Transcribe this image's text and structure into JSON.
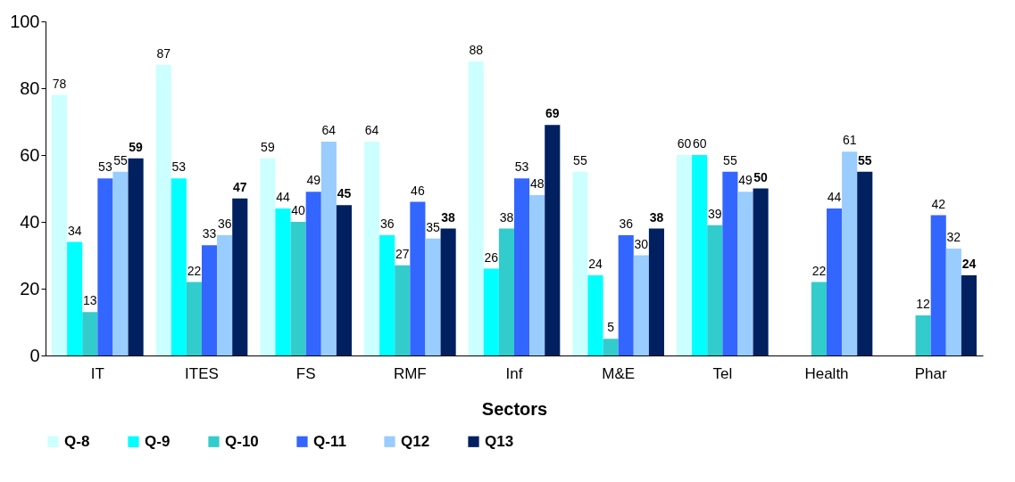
{
  "chart_data": {
    "type": "bar",
    "xlabel": "Sectors",
    "categories": [
      "IT",
      "ITES",
      "FS",
      "RMF",
      "Inf",
      "M&E",
      "Tel",
      "Health",
      "Phar"
    ],
    "series": [
      {
        "name": "Q-8",
        "color": "#ccffff",
        "values": [
          78,
          87,
          59,
          64,
          88,
          55,
          60,
          null,
          null
        ]
      },
      {
        "name": "Q-9",
        "color": "#00ffff",
        "values": [
          34,
          53,
          44,
          36,
          26,
          24,
          60,
          null,
          null
        ]
      },
      {
        "name": "Q-10",
        "color": "#33cccc",
        "values": [
          13,
          22,
          40,
          27,
          38,
          5,
          39,
          22,
          12
        ]
      },
      {
        "name": "Q-11",
        "color": "#3366ff",
        "values": [
          53,
          33,
          49,
          46,
          53,
          36,
          55,
          44,
          42
        ]
      },
      {
        "name": "Q12",
        "color": "#99ccff",
        "values": [
          55,
          36,
          64,
          35,
          48,
          30,
          49,
          61,
          32
        ]
      },
      {
        "name": "Q13",
        "color": "#002060",
        "values": [
          59,
          47,
          45,
          38,
          69,
          38,
          50,
          55,
          24
        ]
      }
    ],
    "ylim": [
      0,
      100
    ],
    "yticks": [
      0,
      20,
      40,
      60,
      80,
      100
    ],
    "data_labels": true,
    "grid": false,
    "legend": "bottom"
  }
}
